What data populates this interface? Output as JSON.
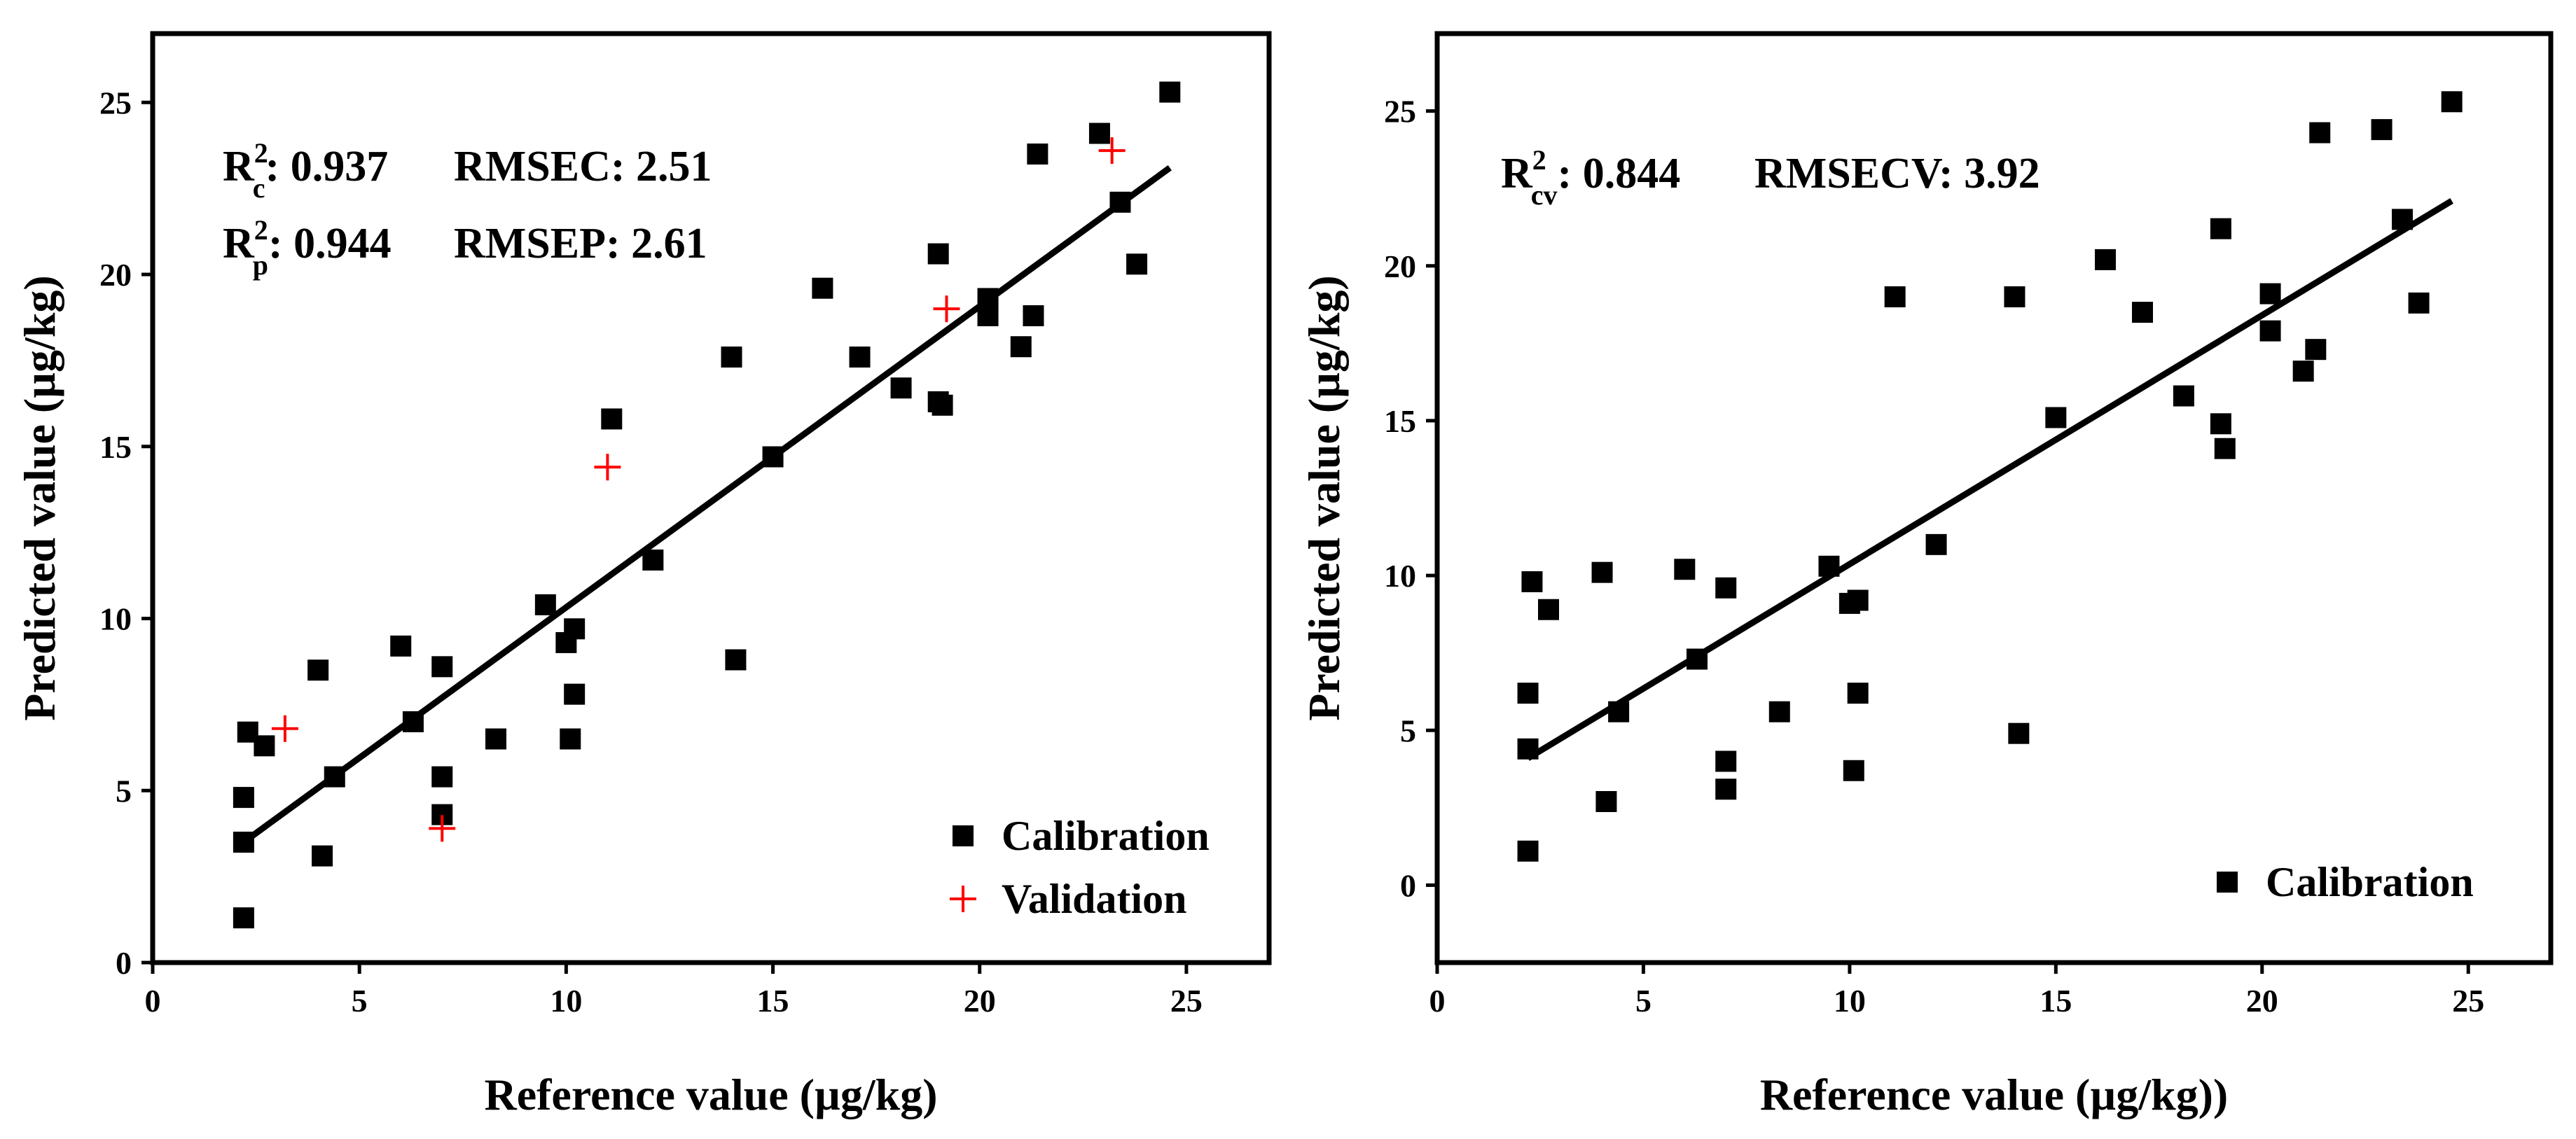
{
  "chart_data": [
    {
      "type": "scatter",
      "xlabel": "Reference value (µg/kg)",
      "ylabel": "Predicted value (µg/kg)",
      "xlim": [
        0,
        27
      ],
      "ylim": [
        0,
        27
      ],
      "xticks": [
        0,
        5,
        10,
        15,
        20,
        25
      ],
      "yticks": [
        0,
        5,
        10,
        15,
        20,
        25
      ],
      "annotations": [
        {
          "sym": "R",
          "sup": "2",
          "sub": "c",
          "text": ": 0.937",
          "metric": "RMSEC: 2.51"
        },
        {
          "sym": "R",
          "sup": "2",
          "sub": "p",
          "text": ": 0.944",
          "metric": "RMSEP: 2.61"
        }
      ],
      "fit_line": {
        "x": [
          2.2,
          24.6
        ],
        "y": [
          3.5,
          23.1
        ]
      },
      "legend": [
        "Calibration",
        "Validation"
      ],
      "series": [
        {
          "name": "Calibration",
          "marker": "square",
          "color": "#000000",
          "points": [
            [
              2.2,
              1.3
            ],
            [
              2.2,
              3.5
            ],
            [
              2.2,
              4.8
            ],
            [
              2.3,
              6.7
            ],
            [
              2.7,
              6.3
            ],
            [
              4.0,
              8.5
            ],
            [
              4.1,
              3.1
            ],
            [
              4.4,
              5.4
            ],
            [
              6.0,
              9.2
            ],
            [
              6.3,
              7.0
            ],
            [
              7.0,
              8.6
            ],
            [
              7.0,
              5.4
            ],
            [
              7.0,
              4.3
            ],
            [
              8.3,
              6.5
            ],
            [
              9.5,
              10.4
            ],
            [
              10.0,
              9.3
            ],
            [
              10.1,
              6.5
            ],
            [
              10.2,
              9.7
            ],
            [
              10.2,
              7.8
            ],
            [
              11.1,
              15.8
            ],
            [
              12.1,
              11.7
            ],
            [
              14.0,
              17.6
            ],
            [
              14.1,
              8.8
            ],
            [
              15.0,
              14.7
            ],
            [
              16.2,
              19.6
            ],
            [
              17.1,
              17.6
            ],
            [
              18.1,
              16.7
            ],
            [
              19.0,
              16.3
            ],
            [
              19.1,
              16.2
            ],
            [
              19.0,
              20.6
            ],
            [
              20.2,
              19.3
            ],
            [
              20.2,
              18.8
            ],
            [
              21.0,
              17.9
            ],
            [
              21.3,
              18.8
            ],
            [
              21.4,
              23.5
            ],
            [
              22.9,
              24.1
            ],
            [
              23.4,
              22.1
            ],
            [
              23.8,
              20.3
            ],
            [
              24.6,
              25.3
            ]
          ]
        },
        {
          "name": "Validation",
          "marker": "plus",
          "color": "#ff0000",
          "points": [
            [
              3.2,
              6.8
            ],
            [
              7.0,
              3.9
            ],
            [
              11.0,
              14.4
            ],
            [
              19.2,
              19.0
            ],
            [
              23.2,
              23.6
            ]
          ]
        }
      ]
    },
    {
      "type": "scatter",
      "xlabel": "Reference value (µg/kg))",
      "ylabel": "Predicted value (µg/kg)",
      "xlim": [
        0,
        27
      ],
      "ylim": [
        -2.5,
        27.5
      ],
      "xticks": [
        0,
        5,
        10,
        15,
        20,
        25
      ],
      "yticks": [
        0,
        5,
        10,
        15,
        20,
        25
      ],
      "annotations": [
        {
          "sym": "R",
          "sup": "2",
          "sub": "cv",
          "text": ": 0.844",
          "metric": "RMSECV: 3.92"
        }
      ],
      "fit_line": {
        "x": [
          2.2,
          24.6
        ],
        "y": [
          4.1,
          22.1
        ]
      },
      "legend": [
        "Calibration"
      ],
      "series": [
        {
          "name": "Calibration",
          "marker": "square",
          "color": "#000000",
          "points": [
            [
              2.2,
              1.1
            ],
            [
              2.2,
              4.4
            ],
            [
              2.2,
              6.2
            ],
            [
              2.3,
              9.8
            ],
            [
              2.7,
              8.9
            ],
            [
              4.0,
              10.1
            ],
            [
              4.1,
              2.7
            ],
            [
              4.4,
              5.6
            ],
            [
              6.0,
              10.2
            ],
            [
              6.3,
              7.3
            ],
            [
              7.0,
              9.6
            ],
            [
              7.0,
              4.0
            ],
            [
              7.0,
              3.1
            ],
            [
              8.3,
              5.6
            ],
            [
              9.5,
              10.3
            ],
            [
              10.0,
              9.1
            ],
            [
              10.1,
              3.7
            ],
            [
              10.2,
              9.2
            ],
            [
              10.2,
              6.2
            ],
            [
              11.1,
              19.0
            ],
            [
              12.1,
              11.0
            ],
            [
              14.0,
              19.0
            ],
            [
              14.1,
              4.9
            ],
            [
              15.0,
              15.1
            ],
            [
              16.2,
              20.2
            ],
            [
              17.1,
              18.5
            ],
            [
              18.1,
              15.8
            ],
            [
              19.0,
              14.9
            ],
            [
              19.1,
              14.1
            ],
            [
              19.0,
              21.2
            ],
            [
              20.2,
              19.1
            ],
            [
              20.2,
              17.9
            ],
            [
              21.0,
              16.6
            ],
            [
              21.3,
              17.3
            ],
            [
              21.4,
              24.3
            ],
            [
              22.9,
              24.4
            ],
            [
              23.4,
              21.5
            ],
            [
              23.8,
              18.8
            ],
            [
              24.6,
              25.3
            ]
          ]
        }
      ]
    }
  ]
}
